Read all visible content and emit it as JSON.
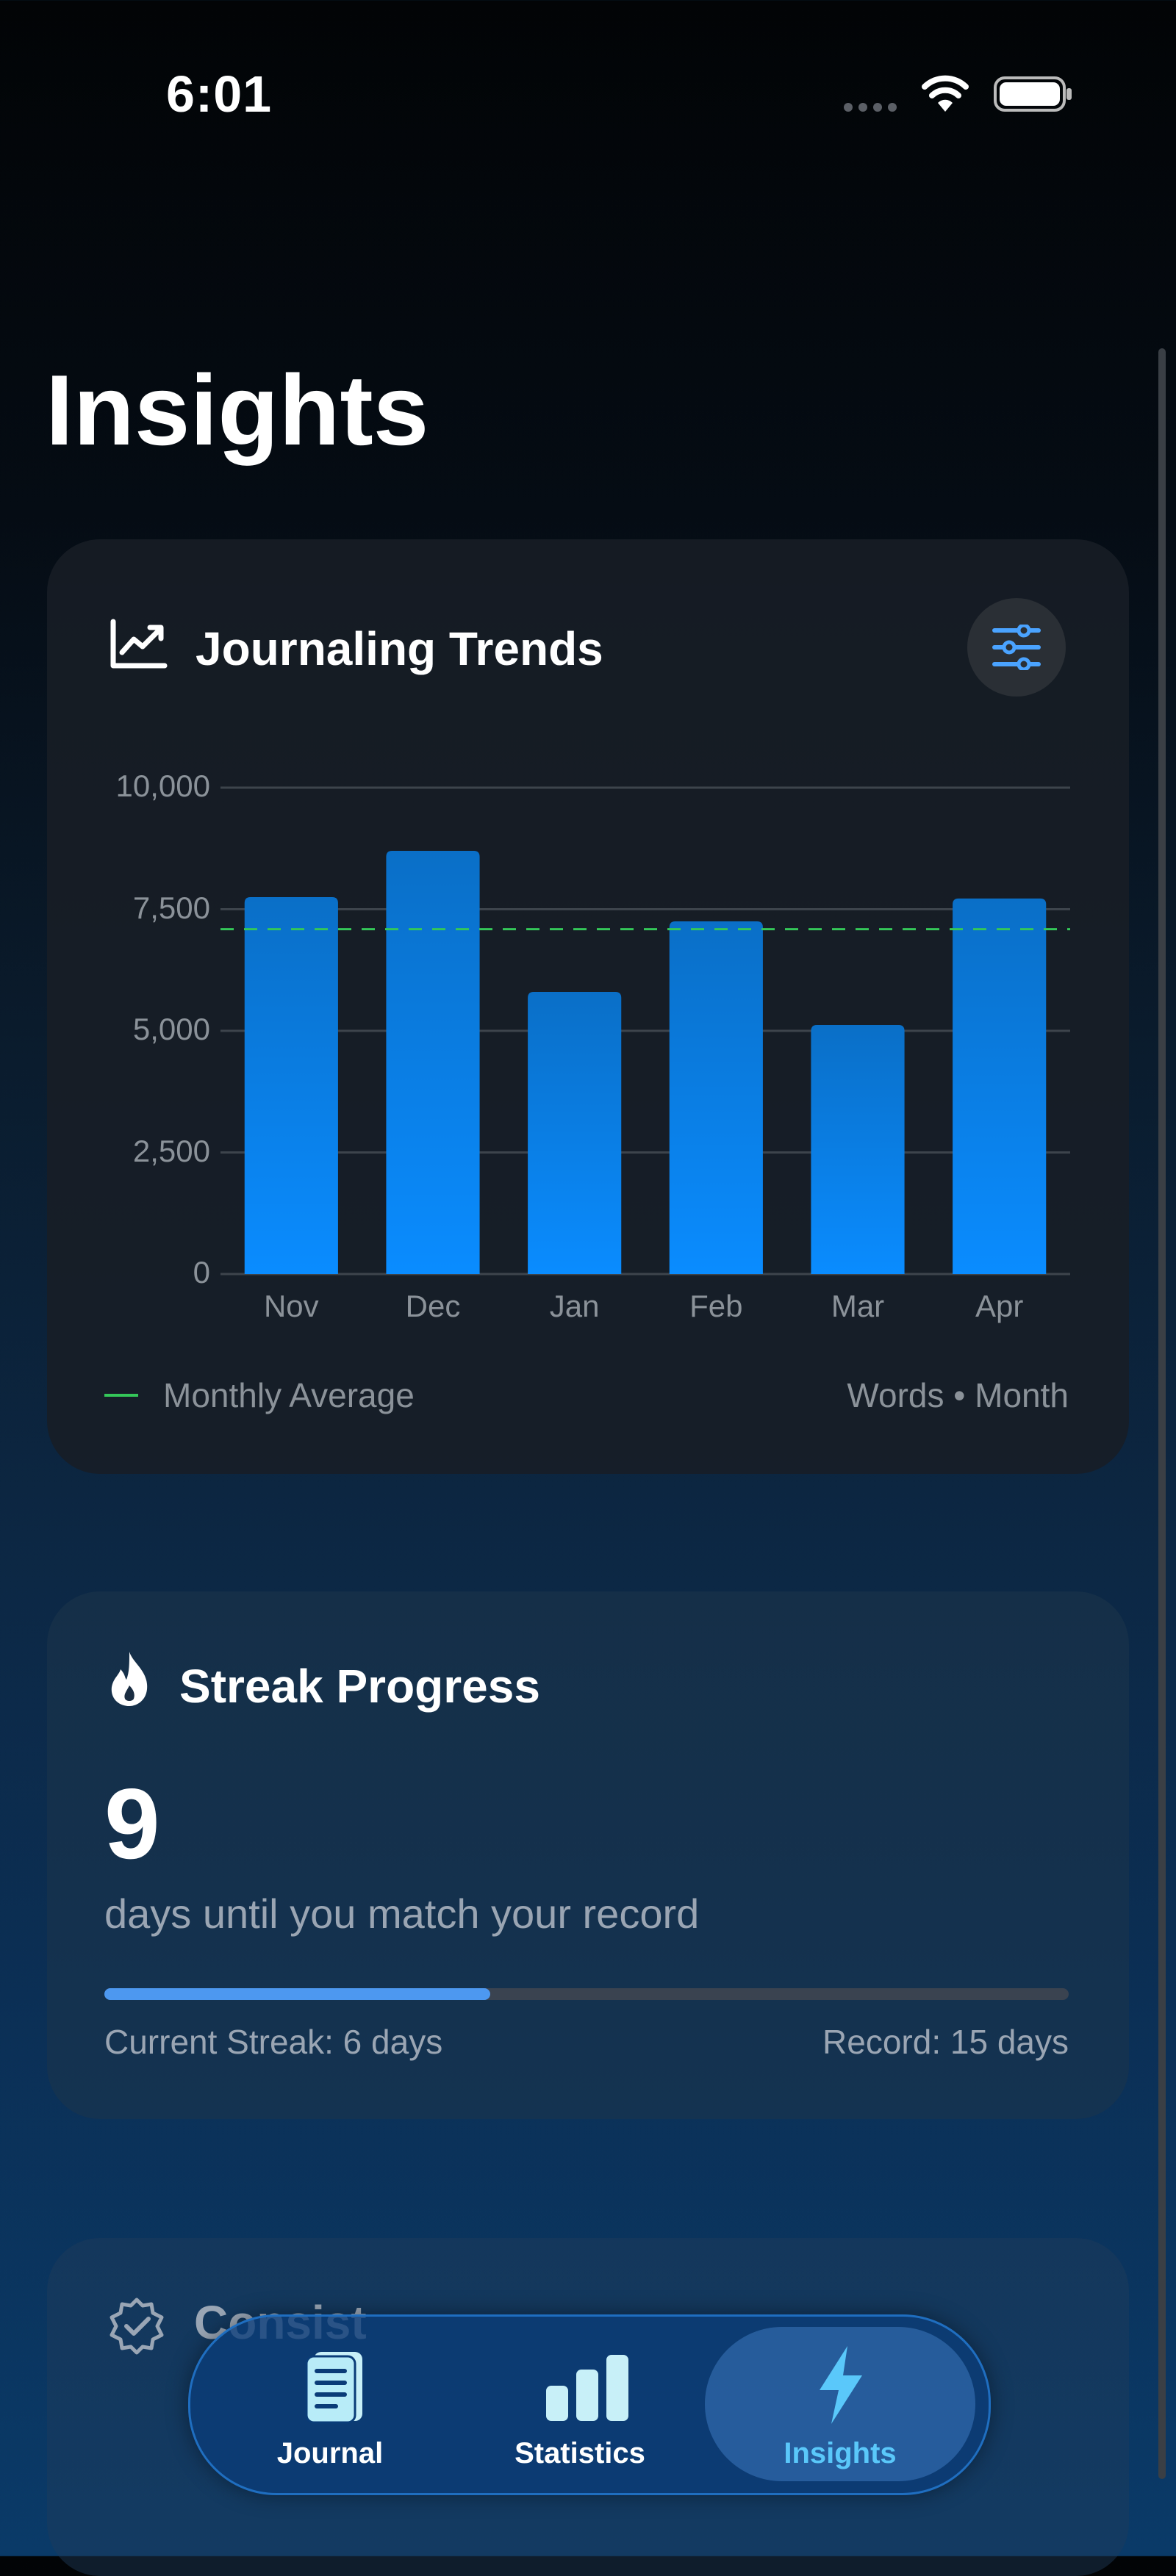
{
  "status_bar": {
    "time": "6:01"
  },
  "header": {
    "title": "Insights"
  },
  "trends_card": {
    "title": "Journaling Trends",
    "icon": "chart-line-uptrend-icon",
    "filter_icon": "sliders-icon",
    "legend_label": "Monthly Average",
    "units_label": "Words • Month"
  },
  "chart_data": {
    "type": "bar",
    "categories": [
      "Nov",
      "Dec",
      "Jan",
      "Feb",
      "Mar",
      "Apr"
    ],
    "values": [
      7750,
      8700,
      5800,
      7250,
      5120,
      7720
    ],
    "yticks": [
      "10,000",
      "7,500",
      "5,000",
      "2,500",
      "0"
    ],
    "ylim": [
      0,
      10000
    ],
    "average": 7090,
    "grid": true,
    "colors": {
      "bar_top": "#0a6fc7",
      "bar_bottom": "#0a8cff",
      "average_line": "#34c759"
    }
  },
  "streak_card": {
    "title": "Streak Progress",
    "icon": "flame-icon",
    "days_remaining": "9",
    "subtitle": "days until you match your record",
    "progress_fraction": 0.4,
    "current_label": "Current Streak: 6 days",
    "record_label": "Record: 15 days"
  },
  "consistency_card": {
    "title": "Consist",
    "icon": "checkmark-seal-icon"
  },
  "tabbar": {
    "tabs": [
      {
        "label": "Journal",
        "icon": "journal-page-icon",
        "active": false
      },
      {
        "label": "Statistics",
        "icon": "bar-chart-icon",
        "active": false
      },
      {
        "label": "Insights",
        "icon": "bolt-icon",
        "active": true
      }
    ],
    "active_color": "#5ac8fa"
  }
}
